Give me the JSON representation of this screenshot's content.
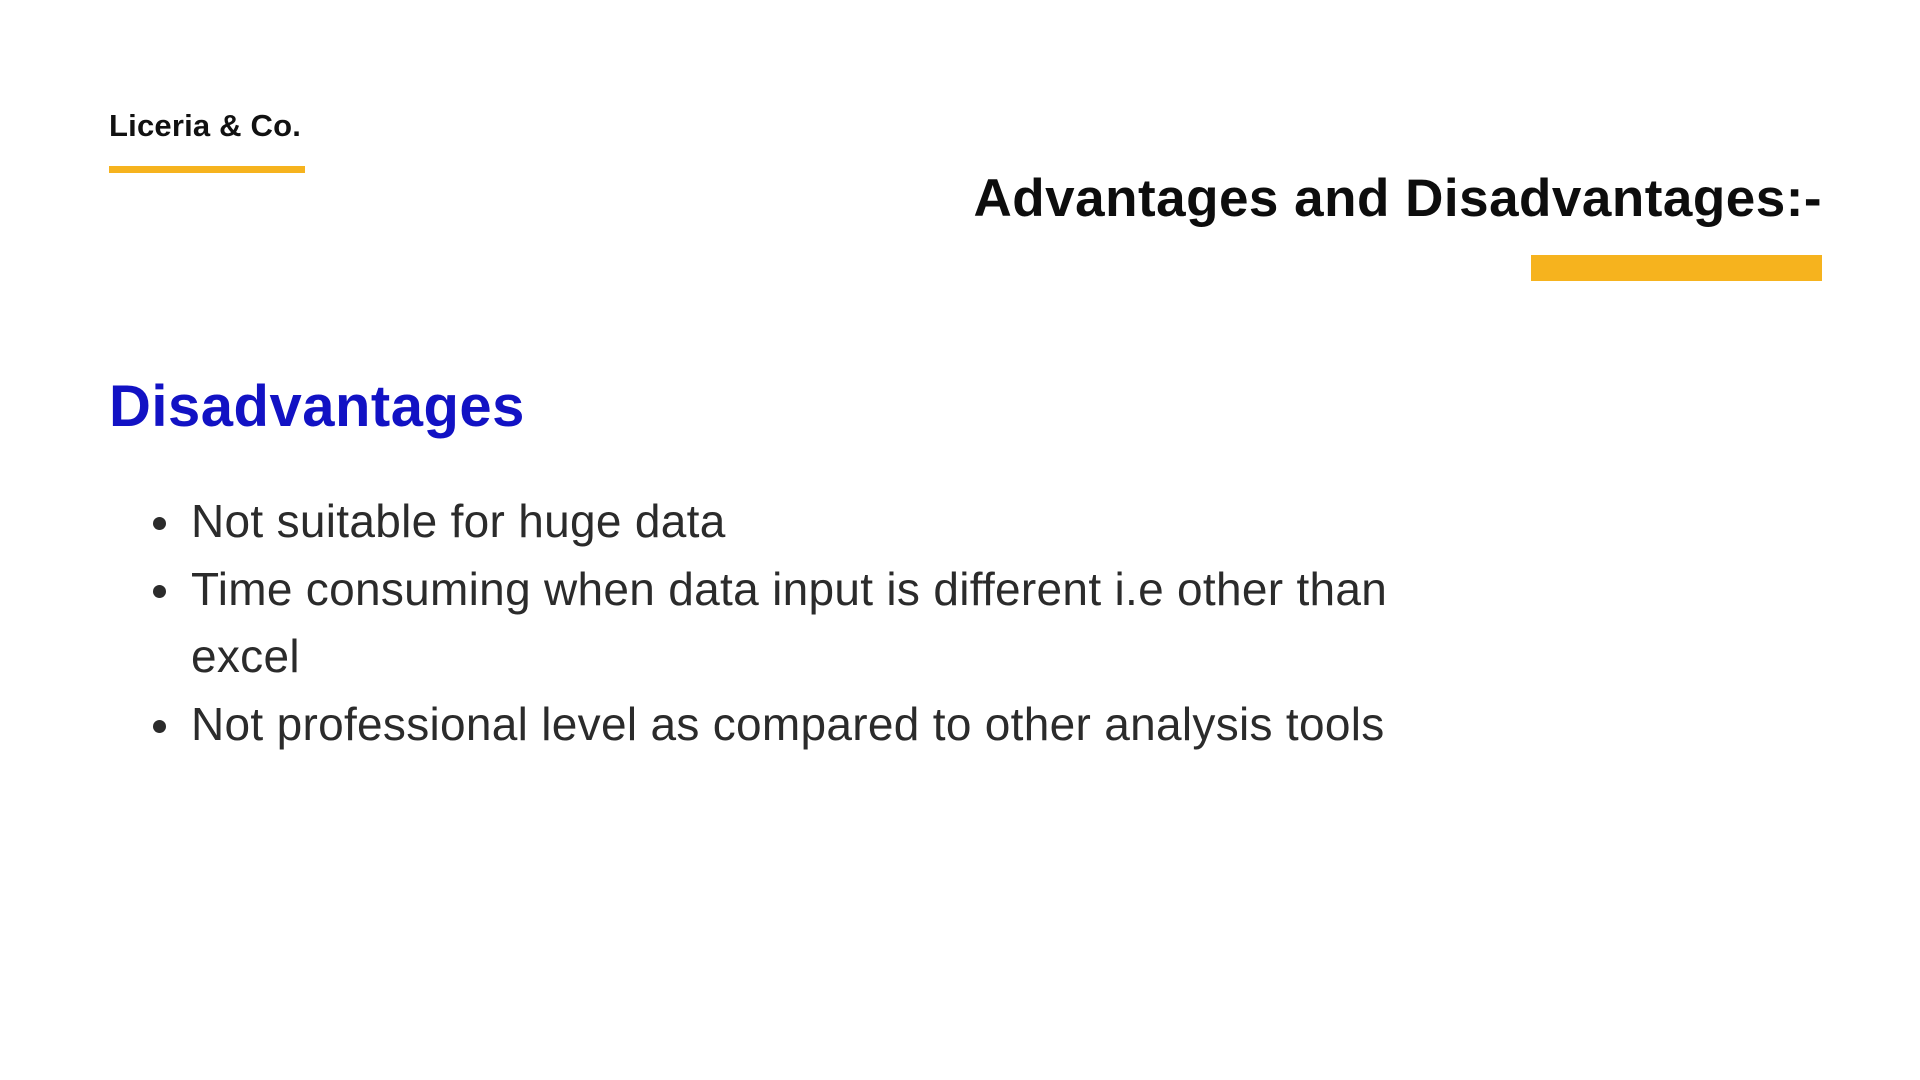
{
  "brand": {
    "name": "Liceria & Co."
  },
  "slide": {
    "title": "Advantages and Disadvantages:-",
    "section_heading": "Disadvantages",
    "bullets": [
      "Not suitable for huge data",
      "Time consuming when data input is different i.e other than excel",
      "Not professional level as compared to other analysis tools"
    ]
  },
  "colors": {
    "accent": "#f6b31e",
    "heading": "#1212c4",
    "text": "#2b2b2b"
  }
}
